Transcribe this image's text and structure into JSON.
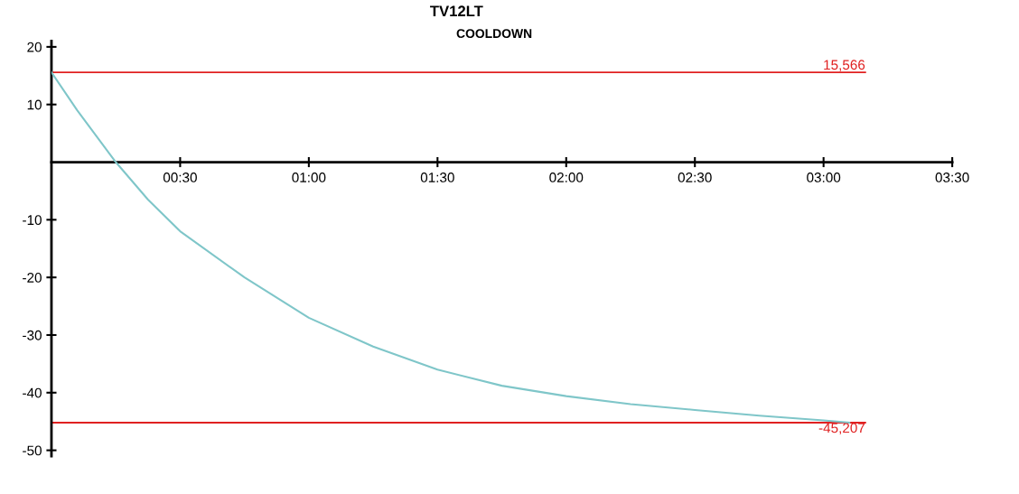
{
  "chart_data": {
    "type": "line",
    "title": "TV12LT",
    "subtitle": "COOLDOWN",
    "x": [
      0,
      0.1,
      0.25,
      0.375,
      0.5,
      0.75,
      1.0,
      1.25,
      1.5,
      1.75,
      2.0,
      2.25,
      2.5,
      2.75,
      3.0,
      3.1
    ],
    "series": [
      {
        "color": "#7fc6c9",
        "values": [
          15.6,
          9,
          0,
          -6.5,
          -12,
          -20,
          -27,
          -32,
          -36,
          -38.8,
          -40.6,
          -42,
          -43,
          -44,
          -44.8,
          -45.2
        ]
      }
    ],
    "xlim": [
      0,
      3.5
    ],
    "ylim": [
      -51,
      21
    ],
    "xticks": [
      {
        "value": 0.5,
        "label": "00:30"
      },
      {
        "value": 1.0,
        "label": "01:00"
      },
      {
        "value": 1.5,
        "label": "01:30"
      },
      {
        "value": 2.0,
        "label": "02:00"
      },
      {
        "value": 2.5,
        "label": "02:30"
      },
      {
        "value": 3.0,
        "label": "03:00"
      },
      {
        "value": 3.5,
        "label": "03:30"
      }
    ],
    "yticks": [
      -50,
      -40,
      -30,
      -20,
      -10,
      10,
      20
    ],
    "ref_lines": [
      {
        "axis": "y",
        "value": 15.566,
        "label": "15,566",
        "color": "#e02020"
      },
      {
        "axis": "y",
        "value": -45.207,
        "label": "-45,207",
        "color": "#e02020"
      }
    ],
    "grid": false,
    "legend": false,
    "marker": "none",
    "line_style": "solid"
  }
}
